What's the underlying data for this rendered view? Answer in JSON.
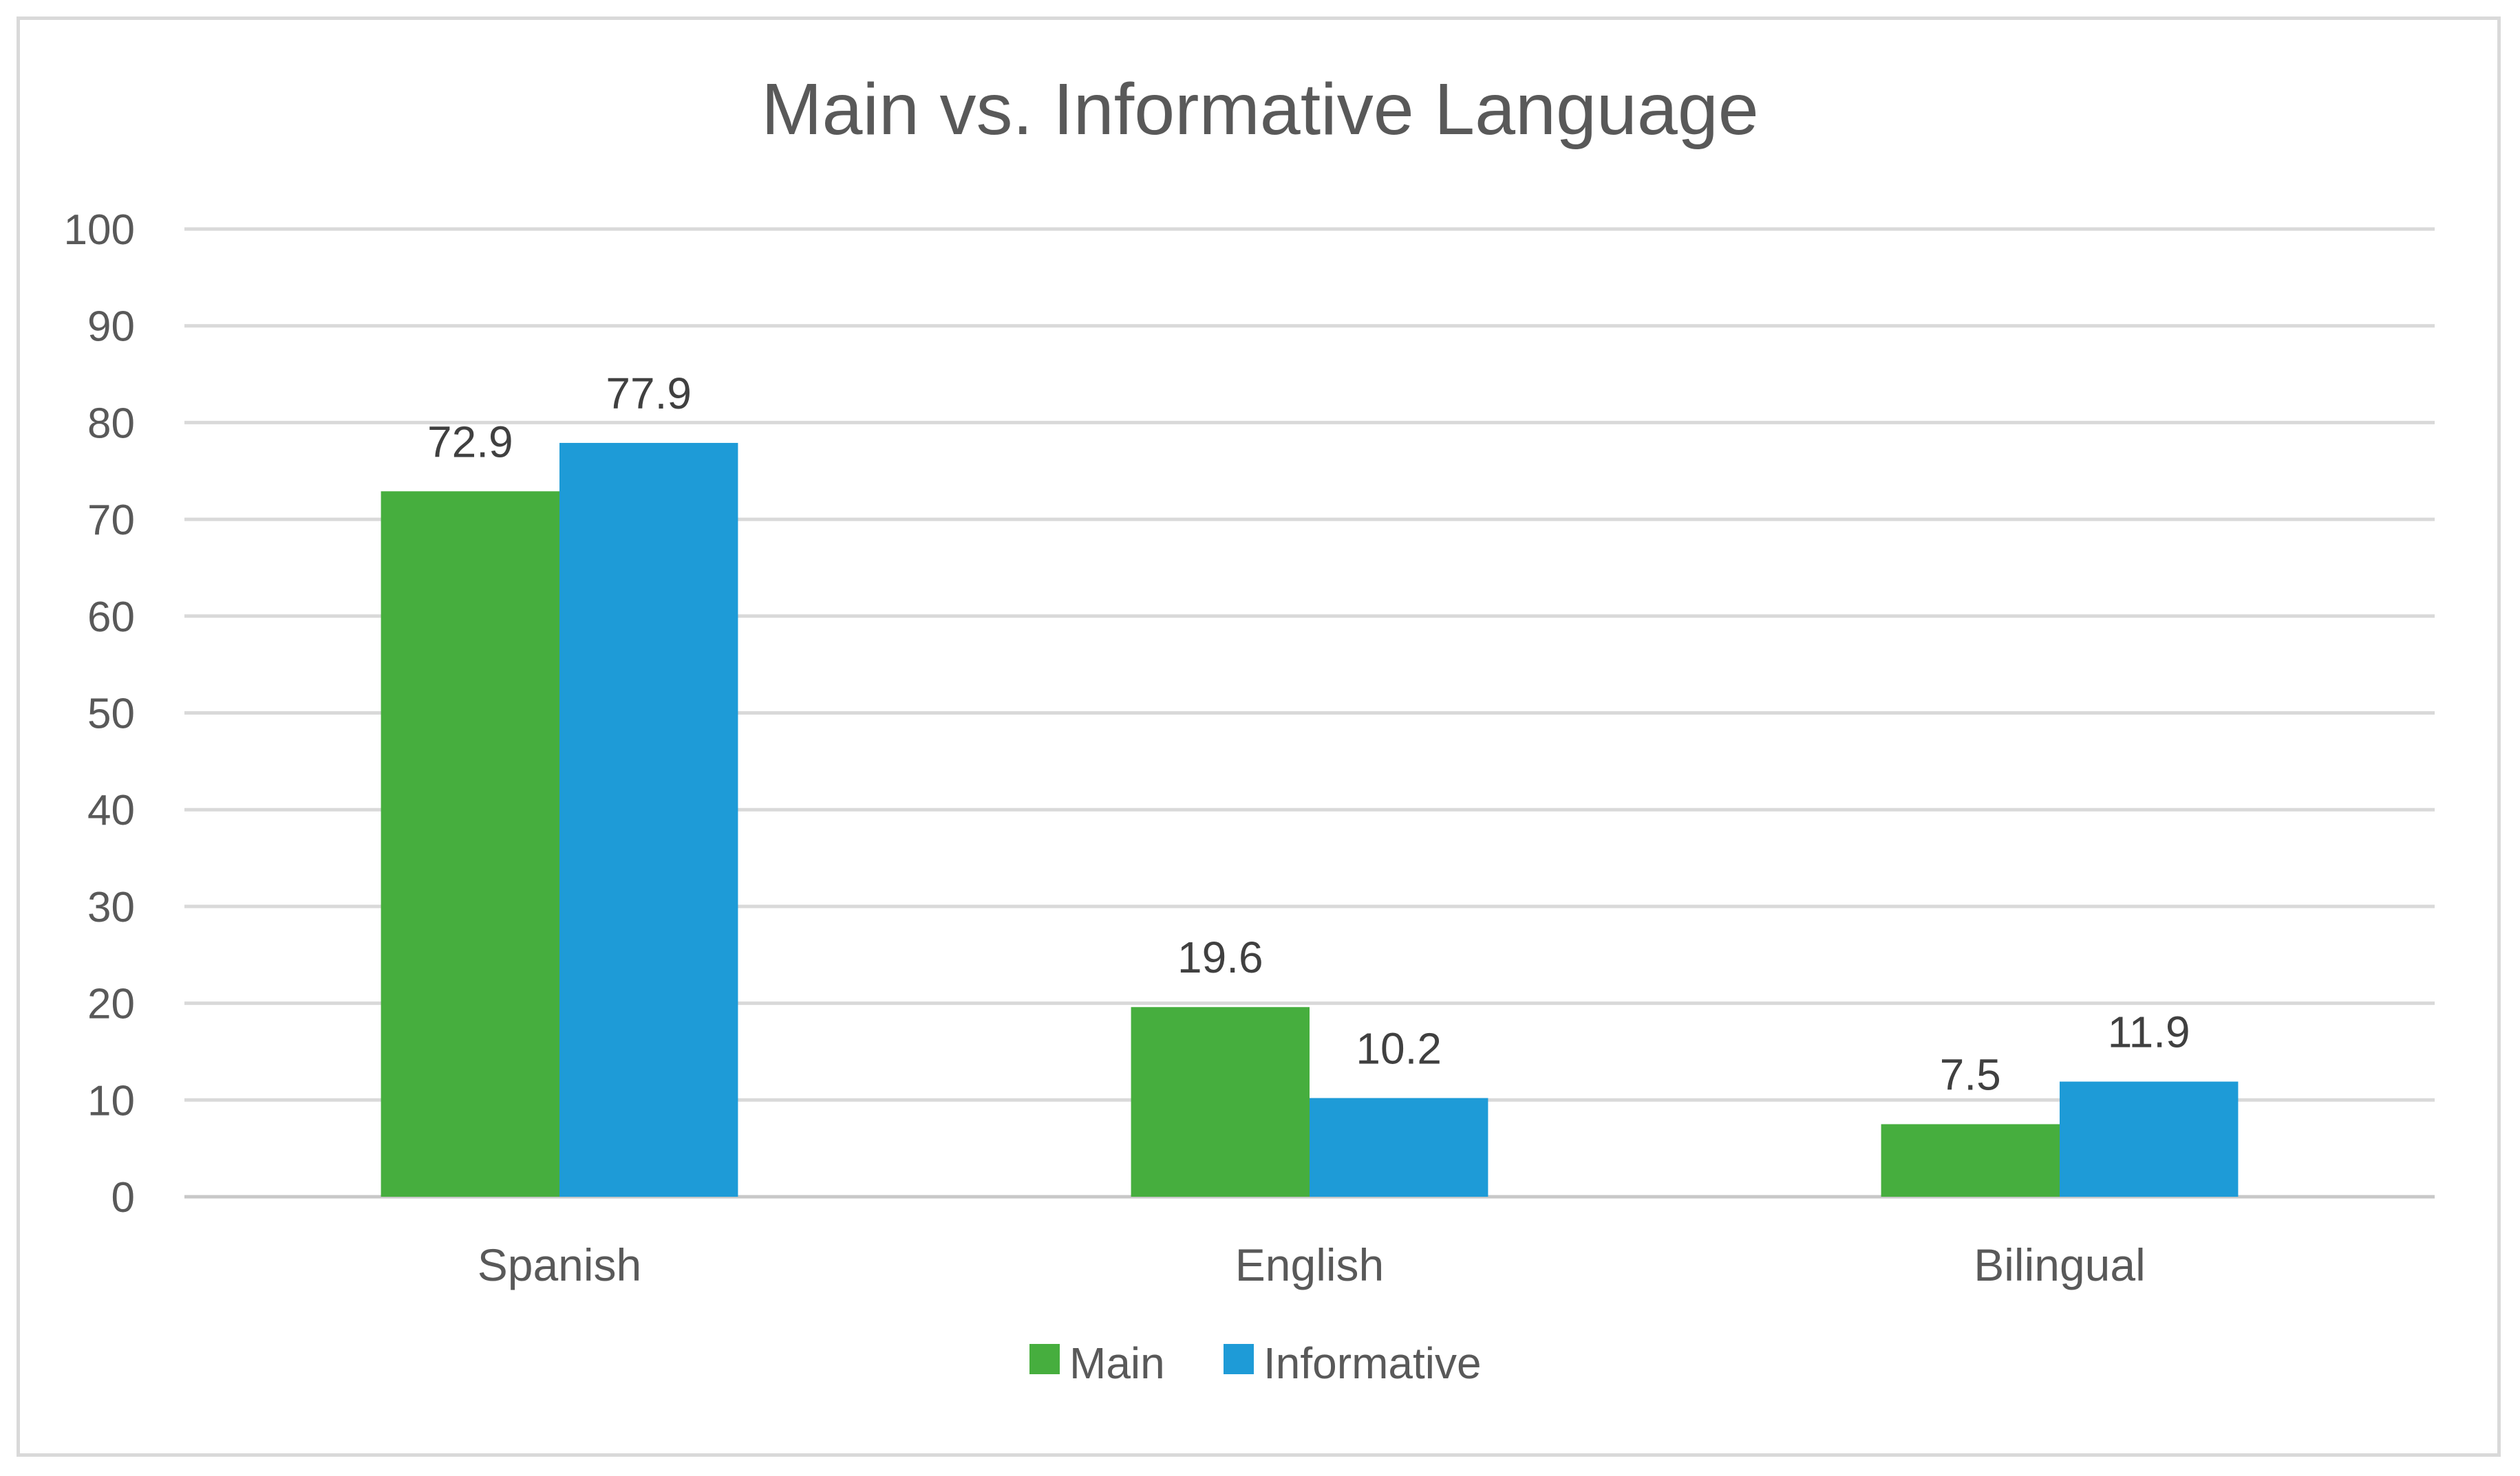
{
  "chart_data": {
    "type": "bar",
    "title": "Main vs. Informative Language",
    "categories": [
      "Spanish",
      "English",
      "Bilingual"
    ],
    "series": [
      {
        "name": "Main",
        "values": [
          72.9,
          19.6,
          7.5
        ],
        "color": "#46ae3e"
      },
      {
        "name": "Informative",
        "values": [
          77.9,
          10.2,
          11.9
        ],
        "color": "#1e9bd7"
      }
    ],
    "ylim": [
      0,
      100
    ],
    "yticks": [
      0,
      10,
      20,
      30,
      40,
      50,
      60,
      70,
      80,
      90,
      100
    ],
    "grid": true,
    "legend": "bottom",
    "data_labels": true
  }
}
